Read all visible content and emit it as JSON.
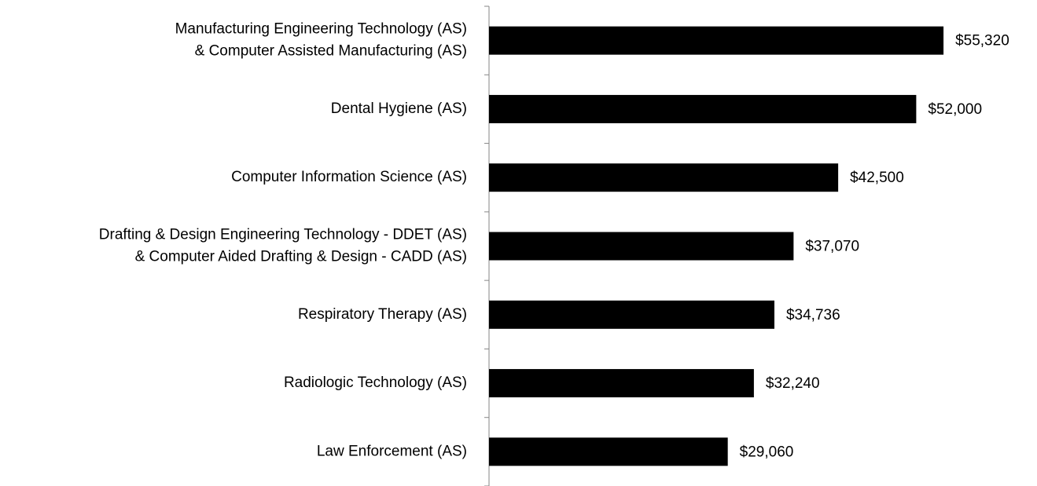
{
  "chart_data": {
    "type": "bar",
    "orientation": "horizontal",
    "categories": [
      [
        "Manufacturing Engineering Technology (AS)",
        "& Computer Assisted Manufacturing (AS)"
      ],
      [
        "Dental Hygiene (AS)"
      ],
      [
        "Computer Information Science (AS)"
      ],
      [
        "Drafting & Design Engineering Technology - DDET (AS)",
        "& Computer Aided Drafting & Design - CADD (AS)"
      ],
      [
        "Respiratory Therapy (AS)"
      ],
      [
        "Radiologic Technology (AS)"
      ],
      [
        "Law Enforcement (AS)"
      ]
    ],
    "values": [
      55320,
      52000,
      42500,
      37070,
      34736,
      32240,
      29060
    ],
    "value_labels": [
      "$55,320",
      "$52,000",
      "$42,500",
      "$37,070",
      "$34,736",
      "$32,240",
      "$29,060"
    ],
    "color": "#000000",
    "xlim": [
      0,
      66700
    ]
  }
}
